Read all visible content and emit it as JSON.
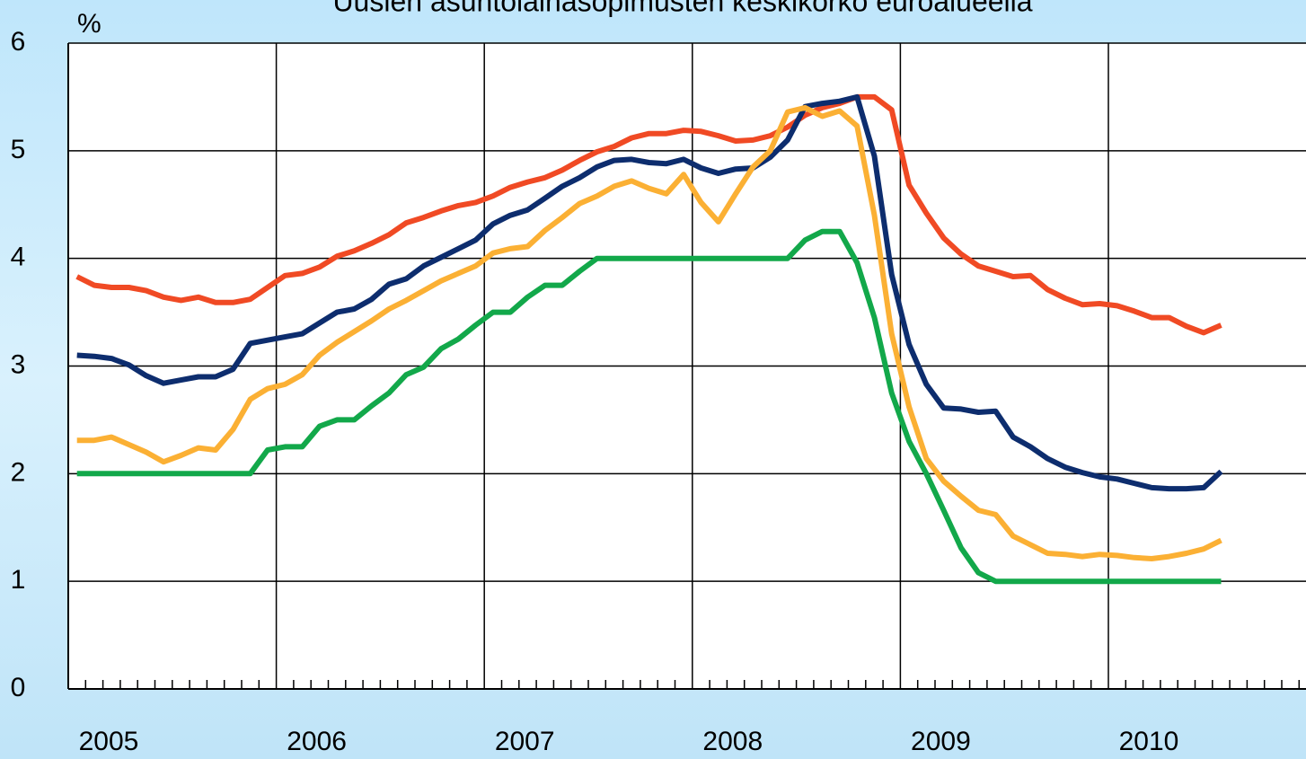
{
  "chart_data": {
    "type": "line",
    "title": "Uusien asuntolainasopimusten keskikorko euroalueella",
    "y_label": "%",
    "x": [
      2005.042,
      2005.125,
      2005.208,
      2005.292,
      2005.375,
      2005.458,
      2005.542,
      2005.625,
      2005.708,
      2005.792,
      2005.875,
      2005.958,
      2006.042,
      2006.125,
      2006.208,
      2006.292,
      2006.375,
      2006.458,
      2006.542,
      2006.625,
      2006.708,
      2006.792,
      2006.875,
      2006.958,
      2007.042,
      2007.125,
      2007.208,
      2007.292,
      2007.375,
      2007.458,
      2007.542,
      2007.625,
      2007.708,
      2007.792,
      2007.875,
      2007.958,
      2008.042,
      2008.125,
      2008.208,
      2008.292,
      2008.375,
      2008.458,
      2008.542,
      2008.625,
      2008.708,
      2008.792,
      2008.875,
      2008.958,
      2009.042,
      2009.125,
      2009.208,
      2009.292,
      2009.375,
      2009.458,
      2009.542,
      2009.625,
      2009.708,
      2009.792,
      2009.875,
      2009.958,
      2010.042,
      2010.125,
      2010.208,
      2010.292,
      2010.375,
      2010.458,
      2010.542
    ],
    "series": [
      {
        "color": "#f04a24",
        "values": [
          3.83,
          3.75,
          3.73,
          3.73,
          3.7,
          3.64,
          3.61,
          3.64,
          3.59,
          3.59,
          3.62,
          3.73,
          3.84,
          3.86,
          3.92,
          4.02,
          4.07,
          4.14,
          4.22,
          4.33,
          4.38,
          4.44,
          4.49,
          4.52,
          4.58,
          4.66,
          4.71,
          4.75,
          4.82,
          4.91,
          4.99,
          5.04,
          5.12,
          5.16,
          5.16,
          5.19,
          5.18,
          5.14,
          5.09,
          5.1,
          5.14,
          5.22,
          5.33,
          5.4,
          5.44,
          5.5,
          5.5,
          5.38,
          4.68,
          4.42,
          4.19,
          4.04,
          3.93,
          3.88,
          3.83,
          3.84,
          3.71,
          3.63,
          3.57,
          3.58,
          3.56,
          3.51,
          3.45,
          3.45,
          3.37,
          3.31,
          3.38
        ]
      },
      {
        "color": "#0d2d6e",
        "values": [
          3.1,
          3.09,
          3.07,
          3.01,
          2.91,
          2.84,
          2.87,
          2.9,
          2.9,
          2.97,
          3.21,
          3.24,
          3.27,
          3.3,
          3.4,
          3.5,
          3.53,
          3.62,
          3.76,
          3.81,
          3.93,
          4.01,
          4.09,
          4.17,
          4.32,
          4.4,
          4.45,
          4.56,
          4.67,
          4.75,
          4.85,
          4.91,
          4.92,
          4.89,
          4.88,
          4.92,
          4.84,
          4.79,
          4.83,
          4.84,
          4.94,
          5.1,
          5.41,
          5.44,
          5.46,
          5.5,
          4.95,
          3.85,
          3.2,
          2.83,
          2.61,
          2.6,
          2.57,
          2.58,
          2.34,
          2.25,
          2.14,
          2.06,
          2.01,
          1.97,
          1.95,
          1.91,
          1.87,
          1.86,
          1.86,
          1.87,
          2.02
        ]
      },
      {
        "color": "#fbb034",
        "values": [
          2.31,
          2.31,
          2.34,
          2.27,
          2.2,
          2.11,
          2.17,
          2.24,
          2.22,
          2.41,
          2.69,
          2.79,
          2.83,
          2.92,
          3.1,
          3.22,
          3.32,
          3.42,
          3.53,
          3.61,
          3.7,
          3.79,
          3.86,
          3.93,
          4.05,
          4.09,
          4.11,
          4.26,
          4.38,
          4.51,
          4.58,
          4.67,
          4.72,
          4.65,
          4.6,
          4.78,
          4.52,
          4.34,
          4.6,
          4.85,
          5.0,
          5.36,
          5.4,
          5.32,
          5.37,
          5.23,
          4.4,
          3.3,
          2.62,
          2.14,
          1.93,
          1.79,
          1.66,
          1.62,
          1.42,
          1.34,
          1.26,
          1.25,
          1.23,
          1.25,
          1.24,
          1.22,
          1.21,
          1.23,
          1.26,
          1.3,
          1.38
        ]
      },
      {
        "color": "#12a84a",
        "values": [
          2.0,
          2.0,
          2.0,
          2.0,
          2.0,
          2.0,
          2.0,
          2.0,
          2.0,
          2.0,
          2.0,
          2.22,
          2.25,
          2.25,
          2.44,
          2.5,
          2.5,
          2.63,
          2.75,
          2.92,
          2.99,
          3.16,
          3.25,
          3.38,
          3.5,
          3.5,
          3.64,
          3.75,
          3.75,
          3.88,
          4.0,
          4.0,
          4.0,
          4.0,
          4.0,
          4.0,
          4.0,
          4.0,
          4.0,
          4.0,
          4.0,
          4.0,
          4.17,
          4.25,
          4.25,
          3.96,
          3.45,
          2.75,
          2.3,
          2.0,
          1.66,
          1.31,
          1.08,
          1.0,
          1.0,
          1.0,
          1.0,
          1.0,
          1.0,
          1.0,
          1.0,
          1.0,
          1.0,
          1.0,
          1.0,
          1.0,
          1.0
        ]
      }
    ],
    "xlim": [
      2005,
      2011
    ],
    "xticks": [
      2005,
      2006,
      2007,
      2008,
      2009,
      2010,
      2011
    ],
    "ylim": [
      0,
      6
    ],
    "yticks": [
      0,
      1,
      2,
      3,
      4,
      5,
      6
    ],
    "grid": true
  }
}
